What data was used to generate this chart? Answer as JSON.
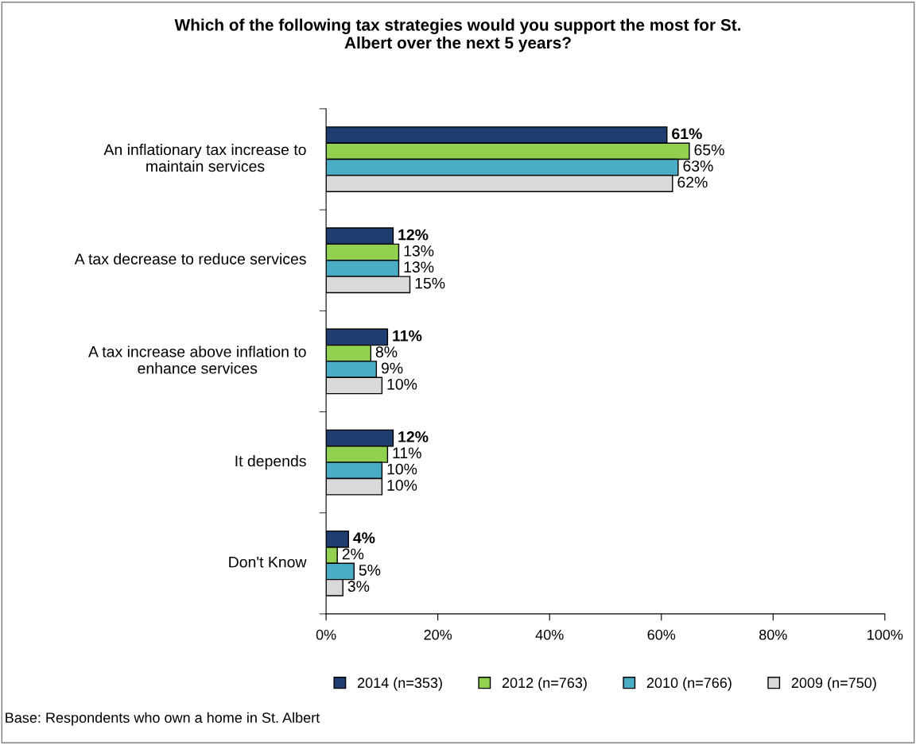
{
  "chart_data": {
    "type": "bar",
    "orientation": "horizontal",
    "title": "Which of the following tax strategies would you support the most for St.\nAlbert over the next 5 years?",
    "categories": [
      "An inflationary tax increase to\nmaintain services",
      "A tax decrease to reduce services",
      "A tax increase above inflation to\nenhance services",
      "It depends",
      "Don't Know"
    ],
    "series": [
      {
        "name": "2014 (n=353)",
        "color": "#1f3d6e",
        "values": [
          61,
          12,
          11,
          12,
          4
        ],
        "value_labels": [
          "61%",
          "12%",
          "11%",
          "12%",
          "4%"
        ]
      },
      {
        "name": "2012 (n=763)",
        "color": "#92d050",
        "values": [
          65,
          13,
          8,
          11,
          2
        ],
        "value_labels": [
          "65%",
          "13%",
          "8%",
          "11%",
          "2%"
        ]
      },
      {
        "name": "2010 (n=766)",
        "color": "#4bacc6",
        "values": [
          63,
          13,
          9,
          10,
          5
        ],
        "value_labels": [
          "63%",
          "13%",
          "9%",
          "10%",
          "5%"
        ]
      },
      {
        "name": "2009 (n=750)",
        "color": "#d9d9d9",
        "values": [
          62,
          15,
          10,
          10,
          3
        ],
        "value_labels": [
          "62%",
          "15%",
          "10%",
          "10%",
          "3%"
        ]
      }
    ],
    "xlim": [
      0,
      100
    ],
    "xticks": [
      {
        "value": 0,
        "label": "0%"
      },
      {
        "value": 20,
        "label": "20%"
      },
      {
        "value": 40,
        "label": "40%"
      },
      {
        "value": 60,
        "label": "60%"
      },
      {
        "value": 80,
        "label": "80%"
      },
      {
        "value": 100,
        "label": "100%"
      }
    ],
    "grid": false,
    "legend": "bottom",
    "annotations": [
      "Base: Respondents who own a home in St. Albert"
    ]
  }
}
